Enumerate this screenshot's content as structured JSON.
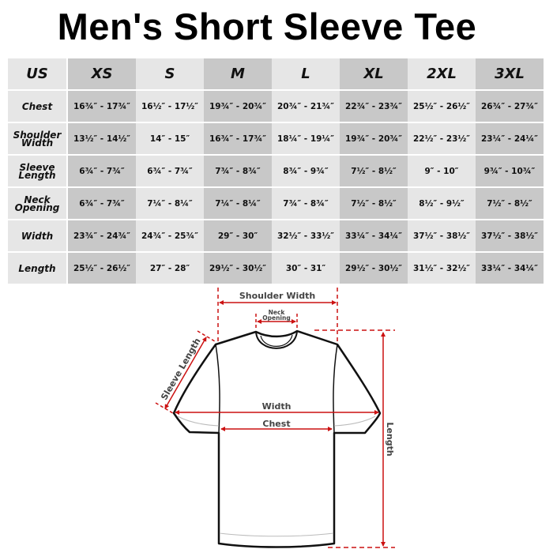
{
  "title": "Men's Short Sleeve Tee",
  "table": {
    "headers": [
      "US",
      "XS",
      "S",
      "M",
      "L",
      "XL",
      "2XL",
      "3XL"
    ],
    "rows": [
      {
        "label": "Chest",
        "values": [
          "16¾″ - 17¾″",
          "16½″ - 17½″",
          "19¾″ - 20¾″",
          "20¾″ - 21¾″",
          "22¾″ - 23¾″",
          "25½″ - 26½″",
          "26¾″ - 27¾″"
        ]
      },
      {
        "label": "Shoulder Width",
        "values": [
          "13½″ - 14½″",
          "14″ - 15″",
          "16¾″ - 17¾″",
          "18¼″ - 19¼″",
          "19¾″ - 20¾″",
          "22½″ - 23½″",
          "23¼″ - 24¼″"
        ]
      },
      {
        "label": "Sleeve Length",
        "values": [
          "6¾″ - 7¾″",
          "6¾″ - 7¾″",
          "7¾″ - 8¾″",
          "8¾″ - 9¾″",
          "7½″ - 8½″",
          "9″ - 10″",
          "9¾″ - 10¾″"
        ]
      },
      {
        "label": "Neck Opening",
        "values": [
          "6¾″ - 7¾″",
          "7¼″ - 8¼″",
          "7¼″ - 8¼″",
          "7¾″ - 8¾″",
          "7½″ - 8½″",
          "8½″ - 9½″",
          "7½″ - 8½″"
        ]
      },
      {
        "label": "Width",
        "values": [
          "23¾″ - 24¾″",
          "24¾″ - 25¾″",
          "29″ - 30″",
          "32½″ - 33½″",
          "33¼″ - 34¼″",
          "37½″ - 38½″",
          "37½″ - 38½″"
        ]
      },
      {
        "label": "Length",
        "values": [
          "25½″ - 26½″",
          "27″ - 28″",
          "29½″ - 30½″",
          "30″ - 31″",
          "29½″ - 30½″",
          "31½″ - 32½″",
          "33¼″ - 34¼″"
        ]
      }
    ]
  },
  "diagram": {
    "shoulder_width": "Shoulder Width",
    "neck_line1": "Neck",
    "neck_line2": "Opening",
    "sleeve_length": "Sleeve Length",
    "width": "Width",
    "chest": "Chest",
    "length": "Length",
    "colors": {
      "measure": "#cc1111",
      "outline": "#111111",
      "label": "#444444",
      "light_column": "#e6e6e6",
      "dark_column": "#c8c8c8"
    }
  }
}
